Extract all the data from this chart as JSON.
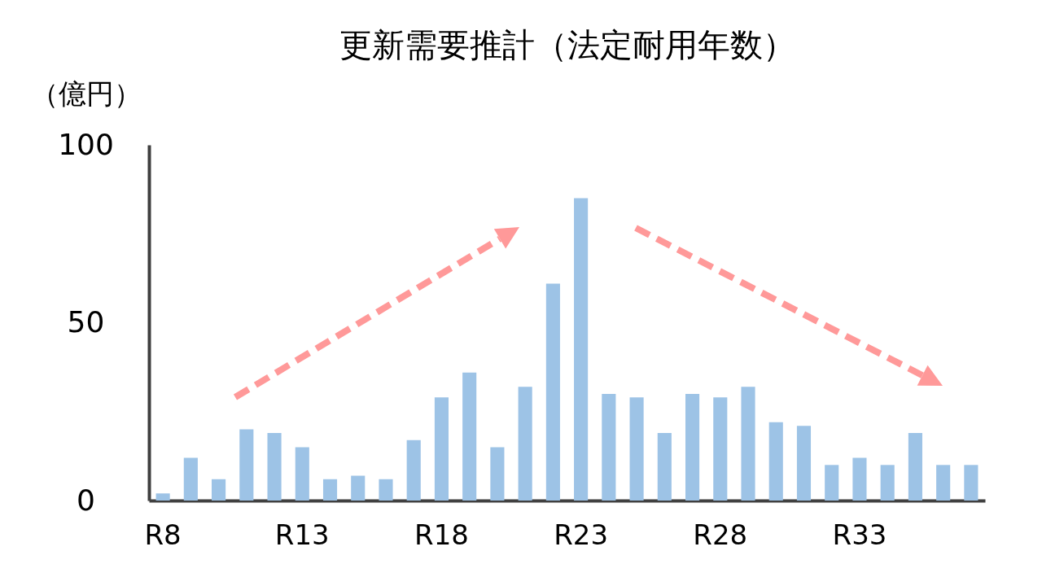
{
  "chart_data": {
    "type": "bar",
    "title": "更新需要推計（法定耐用年数）",
    "ylabel": "（億円）",
    "categories": [
      "R8",
      null,
      null,
      null,
      null,
      "R13",
      null,
      null,
      null,
      null,
      "R18",
      null,
      null,
      null,
      null,
      "R23",
      null,
      null,
      null,
      null,
      "R28",
      null,
      null,
      null,
      null,
      "R33",
      null,
      null,
      null,
      null
    ],
    "values": [
      2,
      12,
      6,
      20,
      19,
      15,
      6,
      7,
      6,
      17,
      29,
      36,
      15,
      32,
      61,
      85,
      30,
      29,
      19,
      30,
      29,
      32,
      22,
      21,
      10,
      12,
      10,
      19,
      10,
      10
    ],
    "color": "#9dc3e6",
    "ylim": [
      0,
      100
    ],
    "yticks": [
      0,
      50,
      100
    ],
    "grid": false
  }
}
